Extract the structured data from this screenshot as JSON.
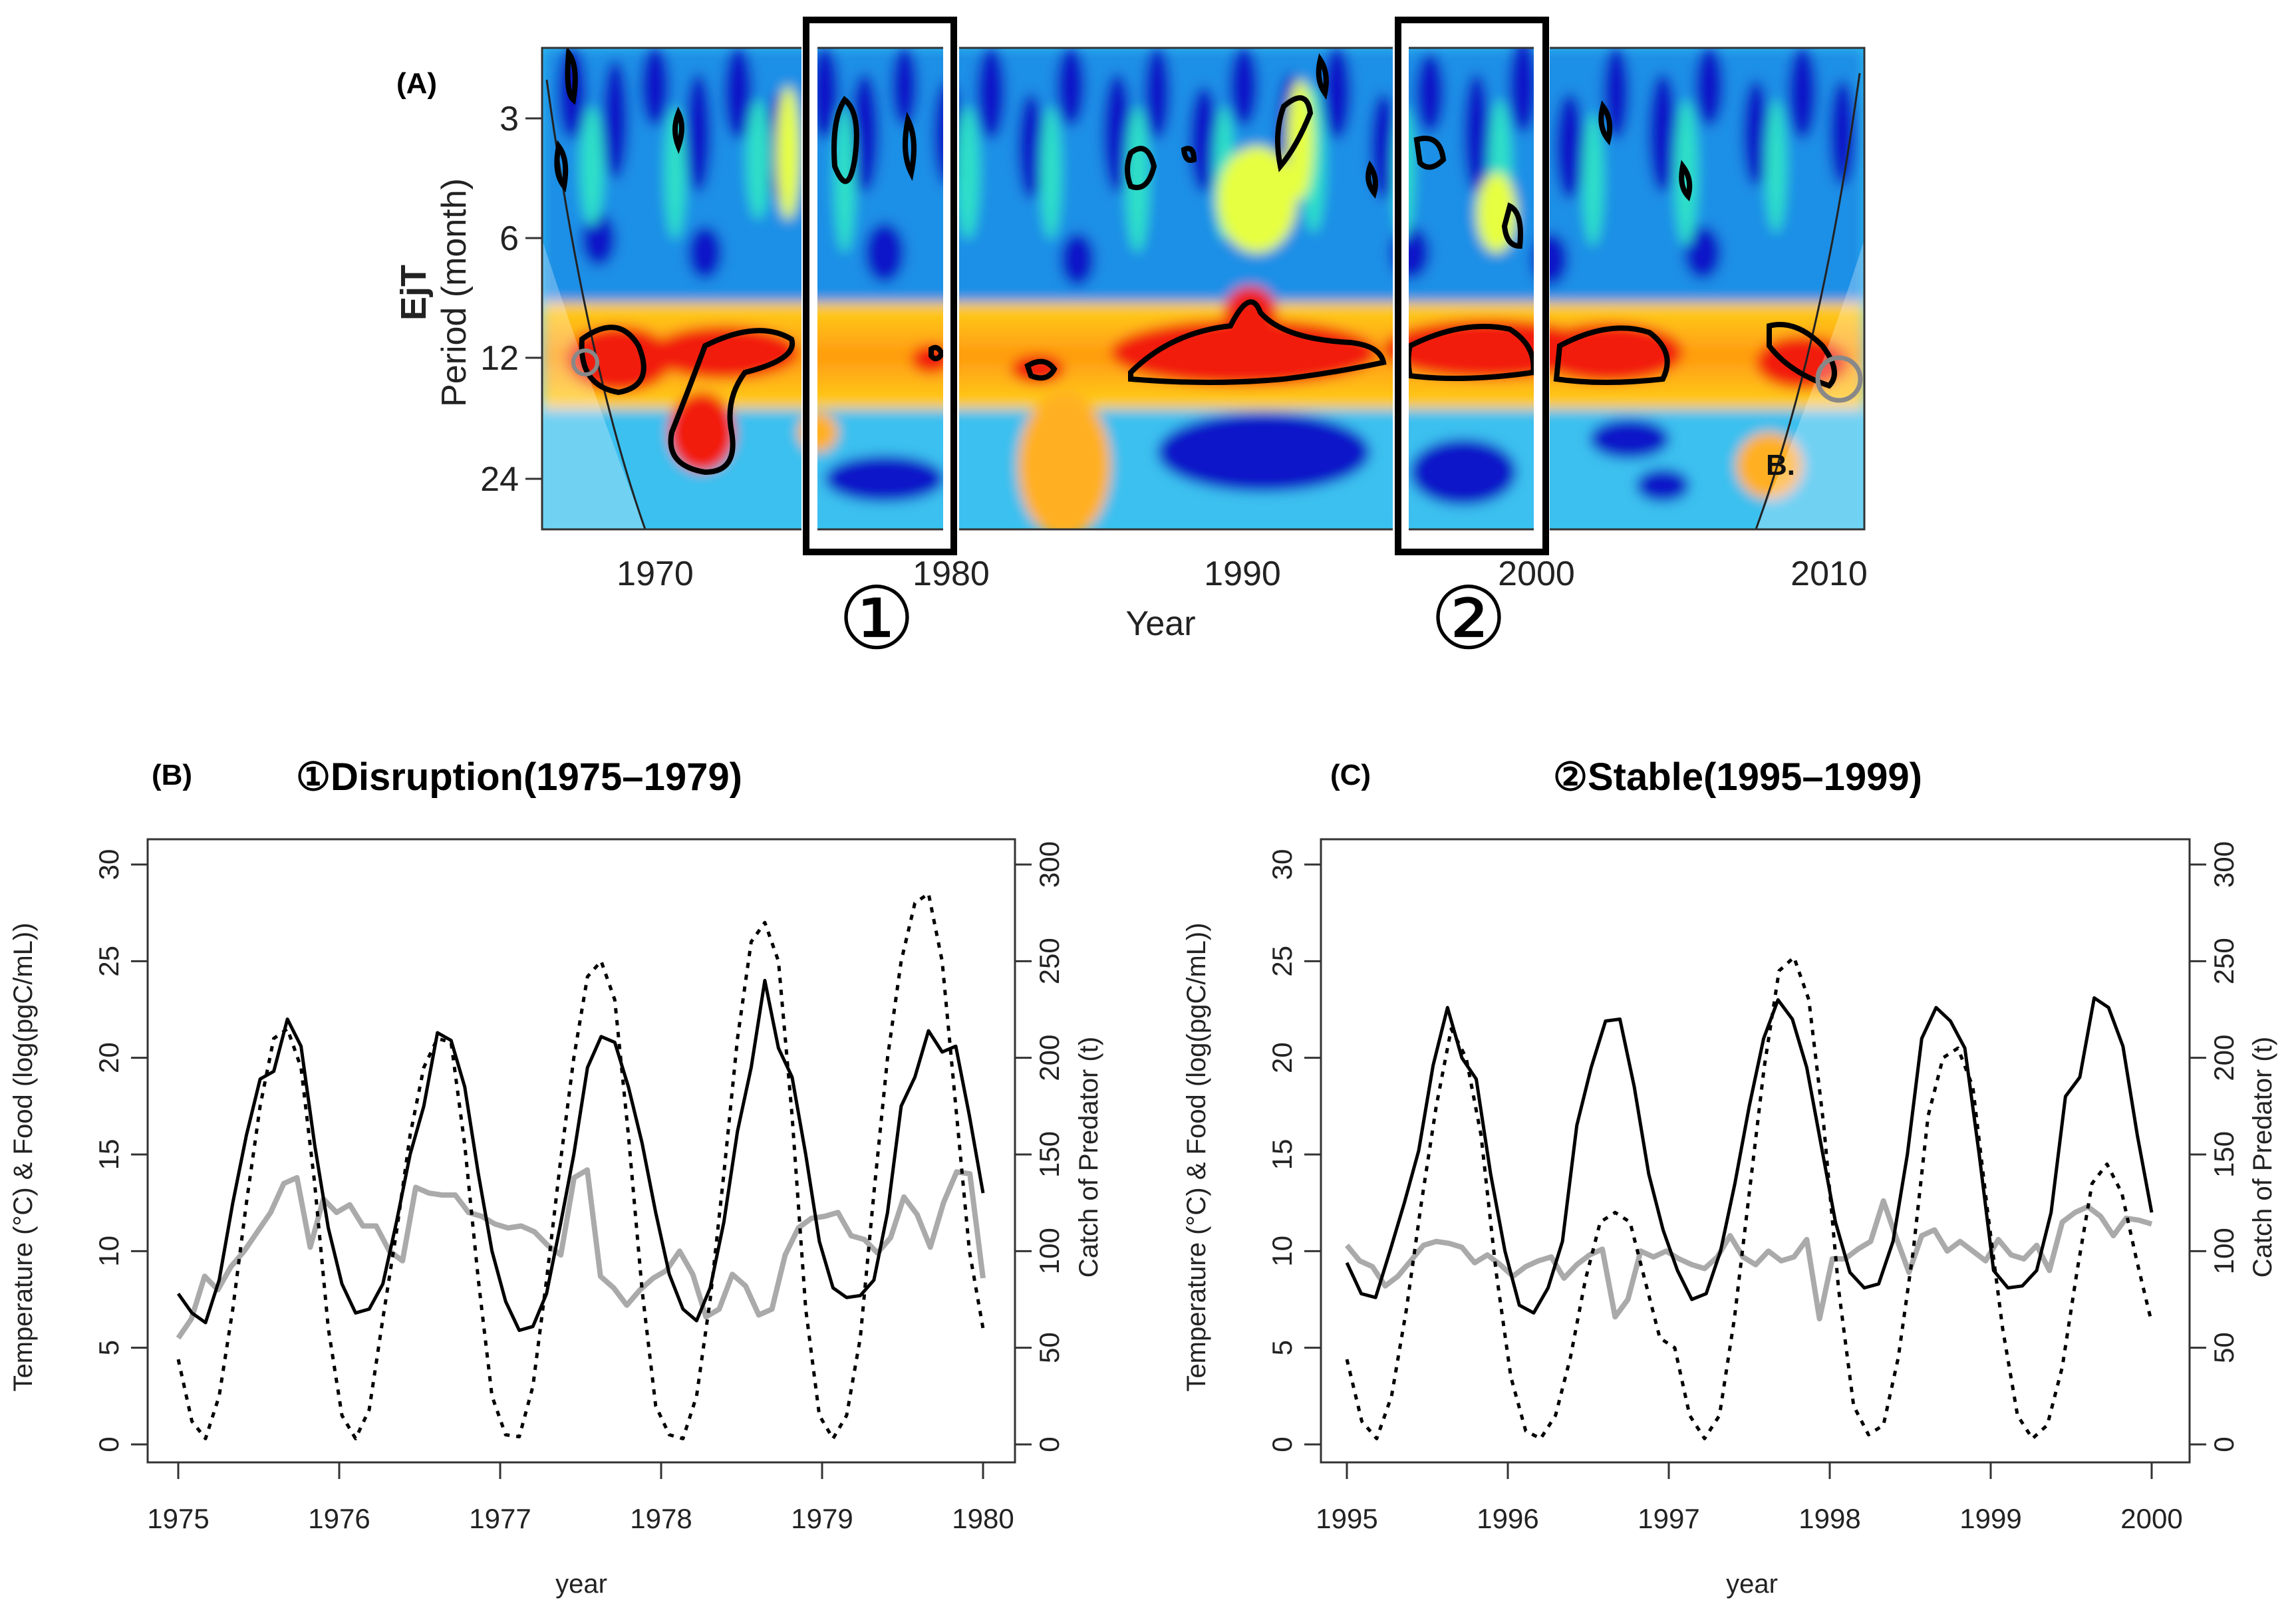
{
  "chart_data": [
    {
      "id": "A",
      "type": "heatmap",
      "panel_label": "(A)",
      "title": "",
      "ylabel_bold": "EjT",
      "ylabel": "Period (month)",
      "xlabel": "Year",
      "xlim": [
        1966,
        2011
      ],
      "y_ticks": [
        3,
        6,
        12,
        24
      ],
      "y_tick_labels": [
        "3",
        "6",
        "12",
        "24"
      ],
      "x_ticks": [
        1970,
        1980,
        1990,
        2000,
        2010
      ],
      "x_tick_labels": [
        "1970",
        "1980",
        "1990",
        "2000",
        "2010"
      ],
      "highlight_boxes": [
        {
          "label": "①",
          "x_from": 1975,
          "x_to": 1980
        },
        {
          "label": "②",
          "x_from": 1995,
          "x_to": 2000
        }
      ],
      "annotation": "B.",
      "red_band_period": 12
    },
    {
      "id": "B",
      "type": "line",
      "panel_label": "(B)",
      "title": "①Disruption(1975–1979)",
      "xlabel": "year",
      "ylabel_left": "Temperature (°C) & Food (log(pgC/mL))",
      "ylabel_right": "Catch of Predator (t)",
      "xlim": [
        1975,
        1980
      ],
      "ylim_left": [
        0,
        30
      ],
      "ylim_right": [
        0,
        300
      ],
      "x_ticks": [
        "1975",
        "1976",
        "1977",
        "1978",
        "1979",
        "1980"
      ],
      "y_ticks_left": [
        "0",
        "5",
        "10",
        "15",
        "20",
        "25",
        "30"
      ],
      "y_ticks_right": [
        "0",
        "50",
        "100",
        "150",
        "200",
        "250",
        "300"
      ],
      "series": [
        {
          "name": "Temperature",
          "style": "solid-black",
          "values": [
            7.8,
            6.8,
            6.3,
            8.5,
            12.5,
            16.0,
            18.9,
            19.3,
            22.0,
            20.6,
            15.5,
            11.2,
            8.3,
            6.8,
            7.0,
            8.3,
            11.5,
            15.0,
            17.5,
            21.3,
            20.9,
            18.5,
            14.0,
            10.0,
            7.4,
            5.9,
            6.1,
            7.8,
            11.3,
            15.0,
            19.5,
            21.1,
            20.8,
            18.5,
            15.6,
            12.0,
            8.8,
            7.0,
            6.4,
            8.1,
            11.5,
            16.2,
            19.5,
            24.0,
            20.5,
            19.0,
            15.0,
            10.5,
            8.1,
            7.6,
            7.7,
            8.5,
            12.0,
            17.5,
            19.0,
            21.4,
            20.3,
            20.6,
            17.0,
            13.0
          ]
        },
        {
          "name": "Food",
          "style": "dotted-black",
          "values": [
            4.4,
            1.2,
            0.3,
            2.5,
            7.0,
            12.5,
            17.5,
            21.0,
            21.5,
            19.5,
            13.5,
            6.0,
            1.5,
            0.3,
            1.8,
            6.5,
            11.0,
            16.0,
            19.5,
            21.0,
            20.8,
            15.5,
            8.5,
            2.5,
            0.5,
            0.4,
            3.0,
            8.5,
            14.5,
            20.0,
            24.2,
            25.0,
            23.0,
            16.0,
            8.0,
            2.0,
            0.5,
            0.3,
            2.5,
            7.5,
            14.0,
            21.0,
            26.0,
            27.0,
            25.0,
            17.0,
            7.0,
            1.5,
            0.3,
            1.5,
            5.5,
            13.0,
            20.0,
            25.0,
            28.0,
            28.5,
            25.0,
            17.5,
            10.0,
            6.0
          ]
        },
        {
          "name": "Catch of Predator",
          "style": "solid-gray",
          "axis": "right",
          "values": [
            55,
            65,
            87,
            80,
            92,
            100,
            110,
            120,
            135,
            138,
            102,
            127,
            120,
            124,
            113,
            113,
            100,
            95,
            133,
            130,
            129,
            129,
            120,
            118,
            114,
            112,
            113,
            110,
            103,
            98,
            138,
            142,
            87,
            81,
            72,
            80,
            86,
            90,
            100,
            88,
            66,
            70,
            88,
            82,
            67,
            70,
            98,
            112,
            117,
            118,
            120,
            108,
            106,
            99,
            107,
            128,
            119,
            102,
            125,
            141,
            140,
            86
          ]
        }
      ]
    },
    {
      "id": "C",
      "type": "line",
      "panel_label": "(C)",
      "title": "②Stable(1995–1999)",
      "xlabel": "year",
      "ylabel_left": "Temperature (°C) & Food (log(pgC/mL))",
      "ylabel_right": "Catch of Predator (t)",
      "xlim": [
        1995,
        2000
      ],
      "ylim_left": [
        0,
        30
      ],
      "ylim_right": [
        0,
        300
      ],
      "x_ticks": [
        "1995",
        "1996",
        "1997",
        "1998",
        "1999",
        "2000"
      ],
      "y_ticks_left": [
        "0",
        "5",
        "10",
        "15",
        "20",
        "25",
        "30"
      ],
      "y_ticks_right": [
        "0",
        "50",
        "100",
        "150",
        "200",
        "250",
        "300"
      ],
      "series": [
        {
          "name": "Temperature",
          "style": "solid-black",
          "values": [
            9.4,
            7.8,
            7.6,
            10.0,
            12.5,
            15.2,
            19.6,
            22.6,
            20.0,
            18.9,
            14.0,
            10.0,
            7.2,
            6.8,
            8.1,
            10.5,
            16.5,
            19.5,
            21.9,
            22.0,
            18.5,
            14.0,
            11.1,
            9.0,
            7.5,
            7.8,
            10.0,
            13.5,
            17.5,
            21.0,
            23.0,
            22.0,
            19.5,
            15.5,
            11.5,
            8.9,
            8.1,
            8.3,
            10.5,
            15.0,
            21.0,
            22.6,
            21.9,
            20.5,
            15.0,
            9.0,
            8.1,
            8.2,
            9.0,
            12.0,
            18.0,
            19.0,
            23.1,
            22.6,
            20.6,
            16.0,
            12.0
          ]
        },
        {
          "name": "Food",
          "style": "dotted-black",
          "values": [
            4.4,
            1.2,
            0.3,
            2.5,
            7.0,
            12.5,
            17.5,
            21.5,
            20.0,
            16.0,
            9.0,
            3.5,
            0.7,
            0.3,
            1.5,
            4.5,
            8.5,
            11.5,
            12.0,
            11.5,
            8.5,
            5.5,
            5.0,
            1.5,
            0.3,
            1.5,
            6.5,
            13.0,
            19.5,
            24.5,
            25.2,
            23.0,
            16.5,
            8.0,
            2.0,
            0.5,
            1.0,
            4.5,
            10.0,
            17.0,
            20.0,
            20.5,
            18.5,
            12.0,
            6.0,
            1.5,
            0.3,
            1.0,
            4.0,
            9.0,
            13.5,
            14.5,
            13.0,
            9.5,
            6.3
          ]
        },
        {
          "name": "Catch of Predator",
          "style": "solid-gray",
          "axis": "right",
          "values": [
            103,
            95,
            92,
            82,
            87,
            95,
            103,
            105,
            104,
            102,
            94,
            98,
            93,
            87,
            92,
            95,
            97,
            86,
            93,
            98,
            101,
            66,
            75,
            100,
            97,
            100,
            96,
            93,
            91,
            97,
            108,
            97,
            93,
            100,
            95,
            97,
            106,
            65,
            96,
            96,
            101,
            105,
            126,
            107,
            89,
            108,
            111,
            100,
            105,
            100,
            95,
            106,
            98,
            96,
            103,
            90,
            115,
            120,
            123,
            118,
            108,
            117,
            116,
            114
          ]
        }
      ]
    }
  ]
}
